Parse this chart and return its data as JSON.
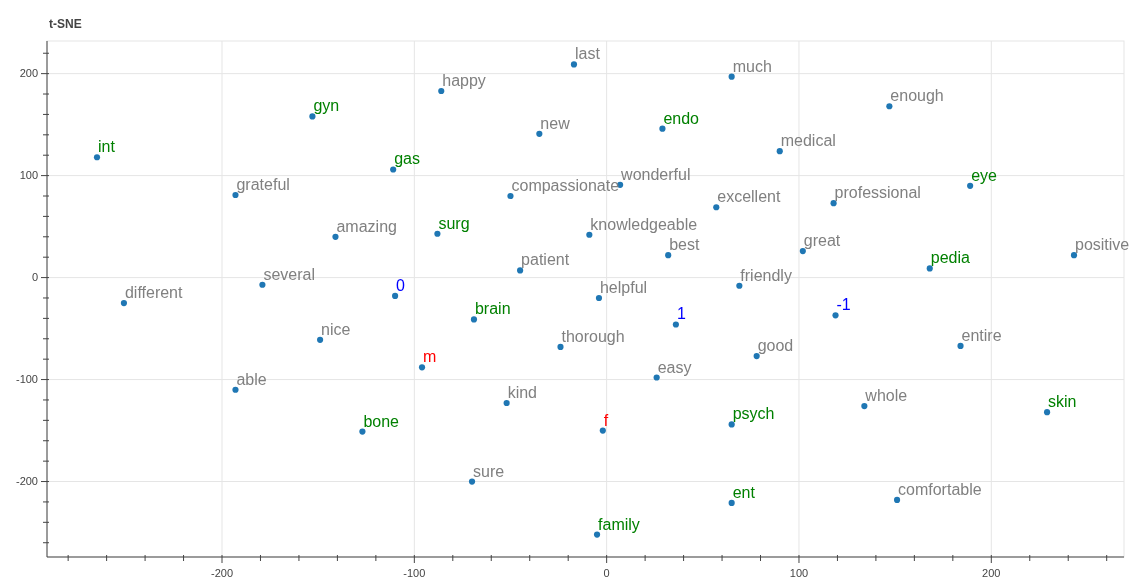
{
  "chart_data": {
    "type": "scatter",
    "title": "t-SNE",
    "marker": "circle",
    "grid": true,
    "xlim": [
      -291,
      269
    ],
    "ylim": [
      -274,
      232
    ],
    "xticks": [
      {
        "value": -280,
        "label": null
      },
      {
        "value": -260,
        "label": null
      },
      {
        "value": -240,
        "label": null
      },
      {
        "value": -220,
        "label": null
      },
      -200,
      {
        "value": -180,
        "label": null
      },
      {
        "value": -160,
        "label": null
      },
      {
        "value": -140,
        "label": null
      },
      {
        "value": -120,
        "label": null
      },
      -100,
      {
        "value": -80,
        "label": null
      },
      {
        "value": -60,
        "label": null
      },
      {
        "value": -40,
        "label": null
      },
      {
        "value": -20,
        "label": null
      },
      0,
      {
        "value": 20,
        "label": null
      },
      {
        "value": 40,
        "label": null
      },
      {
        "value": 60,
        "label": null
      },
      {
        "value": 80,
        "label": null
      },
      100,
      {
        "value": 120,
        "label": null
      },
      {
        "value": 140,
        "label": null
      },
      {
        "value": 160,
        "label": null
      },
      {
        "value": 180,
        "label": null
      },
      200,
      {
        "value": 220,
        "label": null
      },
      {
        "value": 240,
        "label": null
      },
      {
        "value": 260,
        "label": null
      }
    ],
    "yticks": [
      {
        "value": -260,
        "label": null
      },
      {
        "value": -240,
        "label": null
      },
      {
        "value": -220,
        "label": null
      },
      -200,
      {
        "value": -180,
        "label": null
      },
      {
        "value": -160,
        "label": null
      },
      {
        "value": -140,
        "label": null
      },
      {
        "value": -120,
        "label": null
      },
      -100,
      {
        "value": -80,
        "label": null
      },
      {
        "value": -60,
        "label": null
      },
      {
        "value": -40,
        "label": null
      },
      {
        "value": -20,
        "label": null
      },
      0,
      {
        "value": 20,
        "label": null
      },
      {
        "value": 40,
        "label": null
      },
      {
        "value": 60,
        "label": null
      },
      {
        "value": 80,
        "label": null
      },
      100,
      {
        "value": 120,
        "label": null
      },
      {
        "value": 140,
        "label": null
      },
      {
        "value": 160,
        "label": null
      },
      {
        "value": 180,
        "label": null
      },
      200,
      {
        "value": 220,
        "label": null
      }
    ],
    "series": [
      {
        "color": "#1f77b4",
        "x": [
          -265,
          -153,
          -111,
          -88,
          29,
          189,
          168,
          -69,
          229,
          65,
          -127,
          65,
          -5
        ],
        "values": [
          118,
          158,
          106,
          43,
          146,
          90,
          9,
          -41,
          -132,
          -144,
          -151,
          -221,
          -252
        ]
      },
      {
        "color": "#1f77b4",
        "x": [
          -17,
          65,
          -86,
          147,
          -35,
          90,
          -193,
          -50,
          7,
          57,
          118,
          -141,
          -9,
          32,
          102,
          243,
          -45,
          -179,
          -4,
          69,
          -251,
          -149,
          -24,
          78,
          -193,
          26,
          184,
          -52,
          134,
          -70,
          151
        ],
        "values": [
          209,
          197,
          183,
          168,
          141,
          124,
          81,
          80,
          91,
          69,
          73,
          40,
          42,
          22,
          26,
          22,
          7,
          -7,
          -20,
          -8,
          -25,
          -61,
          -68,
          -77,
          -110,
          -98,
          -67,
          -123,
          -126,
          -200,
          -218
        ]
      },
      {
        "color": "#1f77b4",
        "x": [
          -110,
          36,
          119
        ],
        "values": [
          -18,
          -46,
          -37
        ]
      },
      {
        "color": "#1f77b4",
        "x": [
          -96,
          -2
        ],
        "values": [
          -88,
          -150
        ]
      }
    ],
    "annotations": [
      {
        "text": "int",
        "x": -265,
        "y": 118
      },
      {
        "text": "gyn",
        "x": -153,
        "y": 158
      },
      {
        "text": "gas",
        "x": -111,
        "y": 106
      },
      {
        "text": "surg",
        "x": -88,
        "y": 43
      },
      {
        "text": "endo",
        "x": 29,
        "y": 146
      },
      {
        "text": "eye",
        "x": 189,
        "y": 90
      },
      {
        "text": "pedia",
        "x": 168,
        "y": 9
      },
      {
        "text": "brain",
        "x": -69,
        "y": -41
      },
      {
        "text": "skin",
        "x": 229,
        "y": -132
      },
      {
        "text": "psych",
        "x": 65,
        "y": -144
      },
      {
        "text": "bone",
        "x": -127,
        "y": -151
      },
      {
        "text": "ent",
        "x": 65,
        "y": -221
      },
      {
        "text": "family",
        "x": -5,
        "y": -252
      },
      {
        "text": "last",
        "x": -17,
        "y": 209
      },
      {
        "text": "much",
        "x": 65,
        "y": 197
      },
      {
        "text": "happy",
        "x": -86,
        "y": 183
      },
      {
        "text": "enough",
        "x": 147,
        "y": 168
      },
      {
        "text": "new",
        "x": -35,
        "y": 141
      },
      {
        "text": "medical",
        "x": 90,
        "y": 124
      },
      {
        "text": "grateful",
        "x": -193,
        "y": 81
      },
      {
        "text": "compassionate",
        "x": -50,
        "y": 80
      },
      {
        "text": "wonderful",
        "x": 7,
        "y": 91
      },
      {
        "text": "excellent",
        "x": 57,
        "y": 69
      },
      {
        "text": "professional",
        "x": 118,
        "y": 73
      },
      {
        "text": "amazing",
        "x": -141,
        "y": 40
      },
      {
        "text": "knowledgeable",
        "x": -9,
        "y": 42
      },
      {
        "text": "best",
        "x": 32,
        "y": 22
      },
      {
        "text": "great",
        "x": 102,
        "y": 26
      },
      {
        "text": "positive",
        "x": 243,
        "y": 22
      },
      {
        "text": "patient",
        "x": -45,
        "y": 7
      },
      {
        "text": "several",
        "x": -179,
        "y": -7
      },
      {
        "text": "helpful",
        "x": -4,
        "y": -20
      },
      {
        "text": "friendly",
        "x": 69,
        "y": -8
      },
      {
        "text": "different",
        "x": -251,
        "y": -25
      },
      {
        "text": "nice",
        "x": -149,
        "y": -61
      },
      {
        "text": "thorough",
        "x": -24,
        "y": -68
      },
      {
        "text": "good",
        "x": 78,
        "y": -77
      },
      {
        "text": "able",
        "x": -193,
        "y": -110
      },
      {
        "text": "easy",
        "x": 26,
        "y": -98
      },
      {
        "text": "entire",
        "x": 184,
        "y": -67
      },
      {
        "text": "kind",
        "x": -52,
        "y": -123
      },
      {
        "text": "whole",
        "x": 134,
        "y": -126
      },
      {
        "text": "sure",
        "x": -70,
        "y": -200
      },
      {
        "text": "comfortable",
        "x": 151,
        "y": -218
      },
      {
        "text": "0",
        "x": -110,
        "y": -18
      },
      {
        "text": "1",
        "x": 36,
        "y": -46
      },
      {
        "text": "-1",
        "x": 119,
        "y": -37
      },
      {
        "text": "m",
        "x": -96,
        "y": -88
      },
      {
        "text": "f",
        "x": -2,
        "y": -150
      }
    ]
  }
}
